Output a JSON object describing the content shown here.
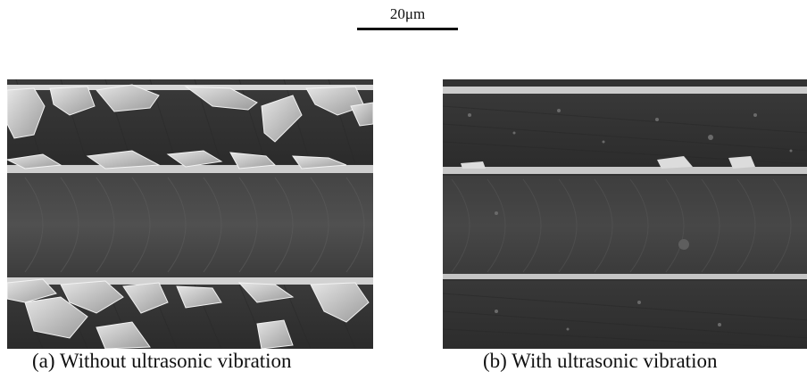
{
  "scale_bar": {
    "label": "20μm"
  },
  "panels": [
    {
      "caption": "(a) Without ultrasonic vibration"
    },
    {
      "caption": "(b) With ultrasonic vibration"
    }
  ]
}
